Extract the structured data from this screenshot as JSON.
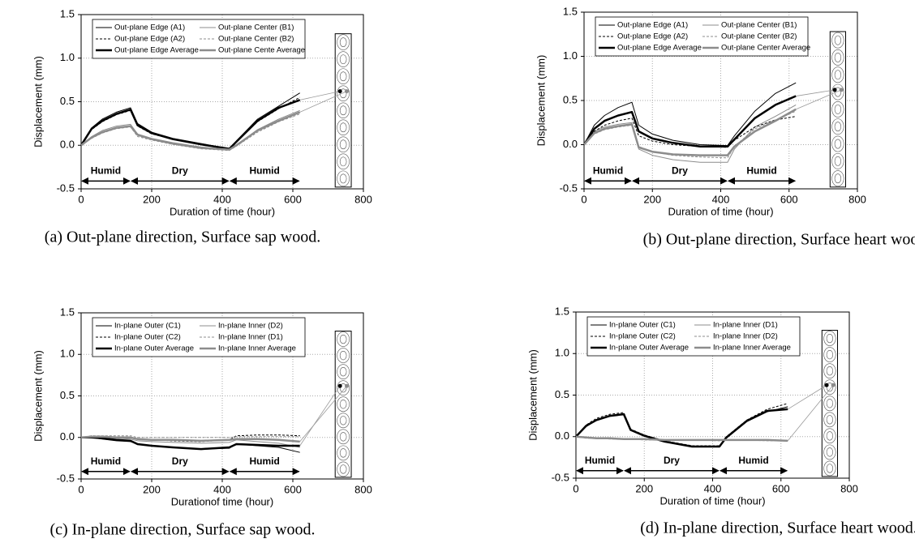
{
  "chart_data": [
    {
      "type": "line",
      "caption": "(a) Out-plane direction, Surface sap wood.",
      "x_label": "Duration of time (hour)",
      "y_label": "Displacement (mm)",
      "xlim": [
        0,
        800
      ],
      "xticks": [
        0,
        200,
        400,
        600,
        800
      ],
      "ylim": [
        -0.5,
        1.5
      ],
      "yticks": [
        -0.5,
        {
          "value": 0,
          "label": "0.0"
        },
        0.5,
        {
          "value": 1,
          "label": "1.0"
        },
        1.5
      ],
      "grid": true,
      "legend": "upper-left",
      "phases": [
        {
          "label": "Humid",
          "start": 0,
          "end": 140
        },
        {
          "label": "Dry",
          "start": 140,
          "end": 420
        },
        {
          "label": "Humid",
          "start": 420,
          "end": 620
        }
      ],
      "x": [
        0,
        30,
        60,
        100,
        140,
        160,
        200,
        260,
        340,
        420,
        440,
        500,
        560,
        620
      ],
      "series": [
        {
          "name": "Out-plane Edge (A1)",
          "color": "#000000",
          "dashed": false,
          "weight": "thin",
          "values": [
            0,
            0.2,
            0.3,
            0.38,
            0.43,
            0.25,
            0.15,
            0.08,
            0.02,
            -0.04,
            0.05,
            0.3,
            0.45,
            0.6
          ]
        },
        {
          "name": "Out-plane Center (B1)",
          "color": "#8c8c8c",
          "dashed": false,
          "weight": "thin",
          "values": [
            0,
            0.1,
            0.17,
            0.22,
            0.24,
            0.13,
            0.08,
            0.03,
            -0.02,
            -0.05,
            0,
            0.18,
            0.3,
            0.4
          ]
        },
        {
          "name": "Out-plane Edge (A2)",
          "color": "#000000",
          "dashed": true,
          "weight": "thin",
          "values": [
            0,
            0.18,
            0.27,
            0.35,
            0.4,
            0.22,
            0.13,
            0.07,
            0.01,
            -0.05,
            0.04,
            0.27,
            0.42,
            0.55
          ]
        },
        {
          "name": "Out-plane Center (B2)",
          "color": "#8c8c8c",
          "dashed": true,
          "weight": "thin",
          "values": [
            0,
            0.08,
            0.14,
            0.19,
            0.21,
            0.1,
            0.06,
            0.01,
            -0.04,
            -0.06,
            -0.01,
            0.15,
            0.27,
            0.36
          ]
        },
        {
          "name": "Out-plane Edge Average",
          "color": "#000000",
          "dashed": false,
          "weight": "thick",
          "values": [
            0,
            0.19,
            0.28,
            0.36,
            0.41,
            0.23,
            0.14,
            0.07,
            0.01,
            -0.04,
            0.04,
            0.28,
            0.43,
            0.52
          ]
        },
        {
          "name": "Out-plane Cente Average",
          "color": "#8c8c8c",
          "dashed": false,
          "weight": "thick",
          "values": [
            0,
            0.09,
            0.15,
            0.2,
            0.22,
            0.12,
            0.07,
            0.02,
            -0.03,
            -0.05,
            0,
            0.17,
            0.28,
            0.38
          ]
        }
      ]
    },
    {
      "type": "line",
      "caption": "(b) Out-plane direction, Surface heart wood.",
      "x_label": "Duration of time (hour)",
      "y_label": "Displacement (mm)",
      "xlim": [
        0,
        800
      ],
      "xticks": [
        0,
        200,
        400,
        600,
        800
      ],
      "ylim": [
        -0.5,
        1.5
      ],
      "yticks": [
        -0.5,
        {
          "value": 0,
          "label": "0.0"
        },
        0.5,
        {
          "value": 1,
          "label": "1.0"
        },
        1.5
      ],
      "grid": true,
      "legend": "upper-left",
      "phases": [
        {
          "label": "Humid",
          "start": 0,
          "end": 140
        },
        {
          "label": "Dry",
          "start": 140,
          "end": 420
        },
        {
          "label": "Humid",
          "start": 420,
          "end": 620
        }
      ],
      "x": [
        0,
        30,
        60,
        100,
        140,
        160,
        200,
        260,
        340,
        420,
        440,
        500,
        560,
        620
      ],
      "series": [
        {
          "name": "Out-plane Edge (A1)",
          "color": "#000000",
          "dashed": false,
          "weight": "thin",
          "values": [
            0,
            0.22,
            0.33,
            0.42,
            0.48,
            0.22,
            0.12,
            0.05,
            0,
            -0.01,
            0.1,
            0.38,
            0.58,
            0.7
          ]
        },
        {
          "name": "Out-plane Center (B1)",
          "color": "#8c8c8c",
          "dashed": false,
          "weight": "thin",
          "values": [
            0,
            0.15,
            0.2,
            0.23,
            0.25,
            -0.05,
            -0.12,
            -0.17,
            -0.2,
            -0.2,
            -0.05,
            0.2,
            0.32,
            0.45
          ]
        },
        {
          "name": "Out-plane Edge (A2)",
          "color": "#000000",
          "dashed": true,
          "weight": "thin",
          "values": [
            0,
            0.15,
            0.22,
            0.27,
            0.3,
            0.1,
            0.04,
            0,
            -0.02,
            -0.03,
            0.05,
            0.2,
            0.28,
            0.32
          ]
        },
        {
          "name": "Out-plane Center (B2)",
          "color": "#8c8c8c",
          "dashed": true,
          "weight": "thin",
          "values": [
            0,
            0.12,
            0.17,
            0.2,
            0.22,
            -0.02,
            -0.08,
            -0.12,
            -0.14,
            -0.15,
            -0.02,
            0.18,
            0.28,
            0.38
          ]
        },
        {
          "name": "Out-plane Edge Average",
          "color": "#000000",
          "dashed": false,
          "weight": "thick",
          "values": [
            0,
            0.18,
            0.27,
            0.33,
            0.37,
            0.15,
            0.07,
            0.02,
            -0.02,
            -0.02,
            0.06,
            0.3,
            0.45,
            0.55
          ]
        },
        {
          "name": "Out-plane Center Average",
          "color": "#8c8c8c",
          "dashed": false,
          "weight": "thick",
          "values": [
            0,
            0.13,
            0.18,
            0.21,
            0.23,
            -0.03,
            -0.08,
            -0.11,
            -0.12,
            -0.12,
            -0.02,
            0.15,
            0.27,
            0.4
          ]
        }
      ]
    },
    {
      "type": "line",
      "caption": "(c) In-plane direction, Surface sap wood.",
      "x_label": "Durationof time (hour)",
      "y_label": "Displacement (mm)",
      "xlim": [
        0,
        800
      ],
      "xticks": [
        0,
        200,
        400,
        600,
        800
      ],
      "ylim": [
        -0.5,
        1.5
      ],
      "yticks": [
        -0.5,
        {
          "value": 0,
          "label": "0.0"
        },
        0.5,
        {
          "value": 1,
          "label": "1.0"
        },
        1.5
      ],
      "grid": true,
      "legend": "upper-left",
      "phases": [
        {
          "label": "Humid",
          "start": 0,
          "end": 140
        },
        {
          "label": "Dry",
          "start": 140,
          "end": 420
        },
        {
          "label": "Humid",
          "start": 420,
          "end": 620
        }
      ],
      "x": [
        0,
        30,
        60,
        100,
        140,
        160,
        200,
        260,
        340,
        420,
        440,
        500,
        560,
        620
      ],
      "series": [
        {
          "name": "In-plane Outer (C1)",
          "color": "#000000",
          "dashed": false,
          "weight": "thin",
          "values": [
            0,
            0,
            -0.02,
            -0.04,
            -0.05,
            -0.08,
            -0.1,
            -0.12,
            -0.14,
            -0.13,
            -0.08,
            -0.1,
            -0.12,
            -0.18
          ]
        },
        {
          "name": "In-plane Inner (D2)",
          "color": "#8c8c8c",
          "dashed": false,
          "weight": "thin",
          "values": [
            0,
            0.01,
            0,
            -0.01,
            -0.02,
            -0.04,
            -0.05,
            -0.06,
            -0.07,
            -0.06,
            -0.03,
            -0.05,
            -0.07,
            -0.12
          ]
        },
        {
          "name": "In-plane Outer (C2)",
          "color": "#000000",
          "dashed": true,
          "weight": "thin",
          "values": [
            0,
            0.02,
            0.01,
            0,
            0,
            -0.02,
            -0.03,
            -0.04,
            -0.05,
            -0.03,
            0.02,
            0.03,
            0.03,
            0.02
          ]
        },
        {
          "name": "In-plane Inner (D1)",
          "color": "#8c8c8c",
          "dashed": true,
          "weight": "thin",
          "values": [
            0,
            0.02,
            0.02,
            0.02,
            0.02,
            0,
            0,
            0,
            0,
            0,
            0.01,
            0.01,
            0.01,
            0.01
          ]
        },
        {
          "name": "In-plane Outer Average",
          "color": "#000000",
          "dashed": false,
          "weight": "thick",
          "values": [
            0,
            0,
            -0.01,
            -0.03,
            -0.04,
            -0.08,
            -0.1,
            -0.12,
            -0.14,
            -0.12,
            -0.08,
            -0.09,
            -0.1,
            -0.1
          ]
        },
        {
          "name": "In-plane Inner Average",
          "color": "#8c8c8c",
          "dashed": false,
          "weight": "thick",
          "values": [
            0,
            0.01,
            0.01,
            0,
            0,
            -0.02,
            -0.03,
            -0.03,
            -0.04,
            -0.03,
            -0.02,
            -0.02,
            -0.03,
            -0.05
          ]
        }
      ]
    },
    {
      "type": "line",
      "caption": "(d) In-plane direction, Surface heart wood.",
      "x_label": "Duration of time (hour)",
      "y_label": "Displacement (mm)",
      "xlim": [
        0,
        800
      ],
      "xticks": [
        0,
        200,
        400,
        600,
        800
      ],
      "ylim": [
        -0.5,
        1.5
      ],
      "yticks": [
        -0.5,
        {
          "value": 0,
          "label": "0.0"
        },
        0.5,
        {
          "value": 1,
          "label": "1.0"
        },
        1.5
      ],
      "grid": true,
      "legend": "upper-left",
      "phases": [
        {
          "label": "Humid",
          "start": 0,
          "end": 140
        },
        {
          "label": "Dry",
          "start": 140,
          "end": 420
        },
        {
          "label": "Humid",
          "start": 420,
          "end": 620
        }
      ],
      "x": [
        0,
        30,
        60,
        100,
        140,
        160,
        200,
        260,
        340,
        420,
        440,
        500,
        560,
        620
      ],
      "series": [
        {
          "name": "In-plane Outer (C1)",
          "color": "#000000",
          "dashed": false,
          "weight": "thin",
          "values": [
            0,
            0.12,
            0.2,
            0.25,
            0.27,
            0.08,
            0.01,
            -0.06,
            -0.12,
            -0.12,
            -0.02,
            0.18,
            0.3,
            0.36
          ]
        },
        {
          "name": "In-plane Inner (D1)",
          "color": "#8c8c8c",
          "dashed": false,
          "weight": "thin",
          "values": [
            0,
            -0.01,
            -0.02,
            -0.02,
            -0.03,
            -0.03,
            -0.03,
            -0.04,
            -0.04,
            -0.04,
            -0.04,
            -0.04,
            -0.04,
            -0.05
          ]
        },
        {
          "name": "In-plane Outer (C2)",
          "color": "#000000",
          "dashed": true,
          "weight": "thin",
          "values": [
            0,
            0.14,
            0.22,
            0.27,
            0.29,
            0.09,
            0.02,
            -0.05,
            -0.11,
            -0.11,
            0,
            0.2,
            0.33,
            0.4
          ]
        },
        {
          "name": "In-plane Inner (D2)",
          "color": "#8c8c8c",
          "dashed": true,
          "weight": "thin",
          "values": [
            0,
            -0.02,
            -0.02,
            -0.03,
            -0.03,
            -0.03,
            -0.04,
            -0.04,
            -0.04,
            -0.05,
            -0.04,
            -0.04,
            -0.05,
            -0.05
          ]
        },
        {
          "name": "In-plane Outer Average",
          "color": "#000000",
          "dashed": false,
          "weight": "thick",
          "values": [
            0,
            0.13,
            0.2,
            0.25,
            0.27,
            0.08,
            0.01,
            -0.06,
            -0.12,
            -0.12,
            -0.01,
            0.19,
            0.31,
            0.33
          ]
        },
        {
          "name": "In-plane Inner Average",
          "color": "#8c8c8c",
          "dashed": false,
          "weight": "thick",
          "values": [
            0,
            -0.01,
            -0.02,
            -0.02,
            -0.03,
            -0.03,
            -0.03,
            -0.04,
            -0.04,
            -0.04,
            -0.04,
            -0.04,
            -0.04,
            -0.05
          ]
        }
      ]
    }
  ]
}
